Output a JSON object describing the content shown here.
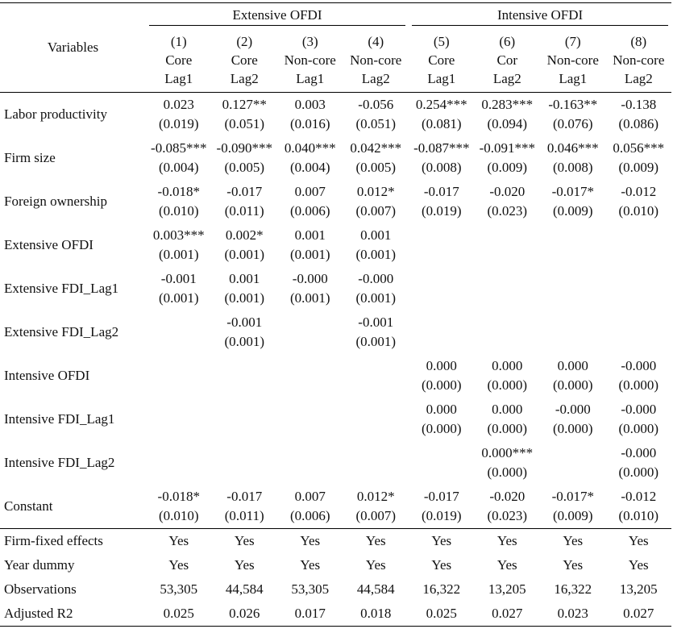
{
  "header": {
    "variables_label": "Variables",
    "groups": [
      "Extensive OFDI",
      "Intensive OFDI"
    ],
    "columns": [
      {
        "num": "(1)",
        "type": "Core",
        "lag": "Lag1"
      },
      {
        "num": "(2)",
        "type": "Core",
        "lag": "Lag2"
      },
      {
        "num": "(3)",
        "type": "Non-core",
        "lag": "Lag1"
      },
      {
        "num": "(4)",
        "type": "Non-core",
        "lag": "Lag2"
      },
      {
        "num": "(5)",
        "type": "Core",
        "lag": "Lag1"
      },
      {
        "num": "(6)",
        "type": "Cor",
        "lag": "Lag2"
      },
      {
        "num": "(7)",
        "type": "Non-core",
        "lag": "Lag1"
      },
      {
        "num": "(8)",
        "type": "Non-core",
        "lag": "Lag2"
      }
    ]
  },
  "rows": [
    {
      "name": "Labor productivity",
      "cells": [
        [
          "0.023",
          "(0.019)"
        ],
        [
          "0.127**",
          "(0.051)"
        ],
        [
          "0.003",
          "(0.016)"
        ],
        [
          "-0.056",
          "(0.051)"
        ],
        [
          "0.254***",
          "(0.081)"
        ],
        [
          "0.283***",
          "(0.094)"
        ],
        [
          "-0.163**",
          "(0.076)"
        ],
        [
          "-0.138",
          "(0.086)"
        ]
      ]
    },
    {
      "name": "Firm size",
      "cells": [
        [
          "-0.085***",
          "(0.004)"
        ],
        [
          "-0.090***",
          "(0.005)"
        ],
        [
          "0.040***",
          "(0.004)"
        ],
        [
          "0.042***",
          "(0.005)"
        ],
        [
          "-0.087***",
          "(0.008)"
        ],
        [
          "-0.091***",
          "(0.009)"
        ],
        [
          "0.046***",
          "(0.008)"
        ],
        [
          "0.056***",
          "(0.009)"
        ]
      ]
    },
    {
      "name": "Foreign ownership",
      "cells": [
        [
          "-0.018*",
          "(0.010)"
        ],
        [
          "-0.017",
          "(0.011)"
        ],
        [
          "0.007",
          "(0.006)"
        ],
        [
          "0.012*",
          "(0.007)"
        ],
        [
          "-0.017",
          "(0.019)"
        ],
        [
          "-0.020",
          "(0.023)"
        ],
        [
          "-0.017*",
          "(0.009)"
        ],
        [
          "-0.012",
          "(0.010)"
        ]
      ]
    },
    {
      "name": "Extensive OFDI",
      "cells": [
        [
          "0.003***",
          "(0.001)"
        ],
        [
          "0.002*",
          "(0.001)"
        ],
        [
          "0.001",
          "(0.001)"
        ],
        [
          "0.001",
          "(0.001)"
        ],
        [
          "",
          ""
        ],
        [
          "",
          ""
        ],
        [
          "",
          ""
        ],
        [
          "",
          ""
        ]
      ]
    },
    {
      "name": "Extensive FDI_Lag1",
      "cells": [
        [
          "-0.001",
          "(0.001)"
        ],
        [
          "0.001",
          "(0.001)"
        ],
        [
          "-0.000",
          "(0.001)"
        ],
        [
          "-0.000",
          "(0.001)"
        ],
        [
          "",
          ""
        ],
        [
          "",
          ""
        ],
        [
          "",
          ""
        ],
        [
          "",
          ""
        ]
      ]
    },
    {
      "name": "Extensive FDI_Lag2",
      "cells": [
        [
          "",
          ""
        ],
        [
          "-0.001",
          "(0.001)"
        ],
        [
          "",
          ""
        ],
        [
          "-0.001",
          "(0.001)"
        ],
        [
          "",
          ""
        ],
        [
          "",
          ""
        ],
        [
          "",
          ""
        ],
        [
          "",
          ""
        ]
      ]
    },
    {
      "name": "Intensive OFDI",
      "cells": [
        [
          "",
          ""
        ],
        [
          "",
          ""
        ],
        [
          "",
          ""
        ],
        [
          "",
          ""
        ],
        [
          "0.000",
          "(0.000)"
        ],
        [
          "0.000",
          "(0.000)"
        ],
        [
          "0.000",
          "(0.000)"
        ],
        [
          "-0.000",
          "(0.000)"
        ]
      ]
    },
    {
      "name": "Intensive FDI_Lag1",
      "cells": [
        [
          "",
          ""
        ],
        [
          "",
          ""
        ],
        [
          "",
          ""
        ],
        [
          "",
          ""
        ],
        [
          "0.000",
          "(0.000)"
        ],
        [
          "0.000",
          "(0.000)"
        ],
        [
          "-0.000",
          "(0.000)"
        ],
        [
          "-0.000",
          "(0.000)"
        ]
      ]
    },
    {
      "name": "Intensive FDI_Lag2",
      "cells": [
        [
          "",
          ""
        ],
        [
          "",
          ""
        ],
        [
          "",
          ""
        ],
        [
          "",
          ""
        ],
        [
          "",
          ""
        ],
        [
          "0.000***",
          "(0.000)"
        ],
        [
          "",
          ""
        ],
        [
          "-0.000",
          "(0.000)"
        ]
      ]
    },
    {
      "name": "Constant",
      "cells": [
        [
          "-0.018*",
          "(0.010)"
        ],
        [
          "-0.017",
          "(0.011)"
        ],
        [
          "0.007",
          "(0.006)"
        ],
        [
          "0.012*",
          "(0.007)"
        ],
        [
          "-0.017",
          "(0.019)"
        ],
        [
          "-0.020",
          "(0.023)"
        ],
        [
          "-0.017*",
          "(0.009)"
        ],
        [
          "-0.012",
          "(0.010)"
        ]
      ]
    }
  ],
  "footer_rows": [
    {
      "name": "Firm-fixed effects",
      "cells": [
        "Yes",
        "Yes",
        "Yes",
        "Yes",
        "Yes",
        "Yes",
        "Yes",
        "Yes"
      ]
    },
    {
      "name": "Year dummy",
      "cells": [
        "Yes",
        "Yes",
        "Yes",
        "Yes",
        "Yes",
        "Yes",
        "Yes",
        "Yes"
      ]
    },
    {
      "name": "Observations",
      "cells": [
        "53,305",
        "44,584",
        "53,305",
        "44,584",
        "16,322",
        "13,205",
        "16,322",
        "13,205"
      ]
    },
    {
      "name": "Adjusted R2",
      "cells": [
        "0.025",
        "0.026",
        "0.017",
        "0.018",
        "0.025",
        "0.027",
        "0.023",
        "0.027"
      ]
    }
  ]
}
